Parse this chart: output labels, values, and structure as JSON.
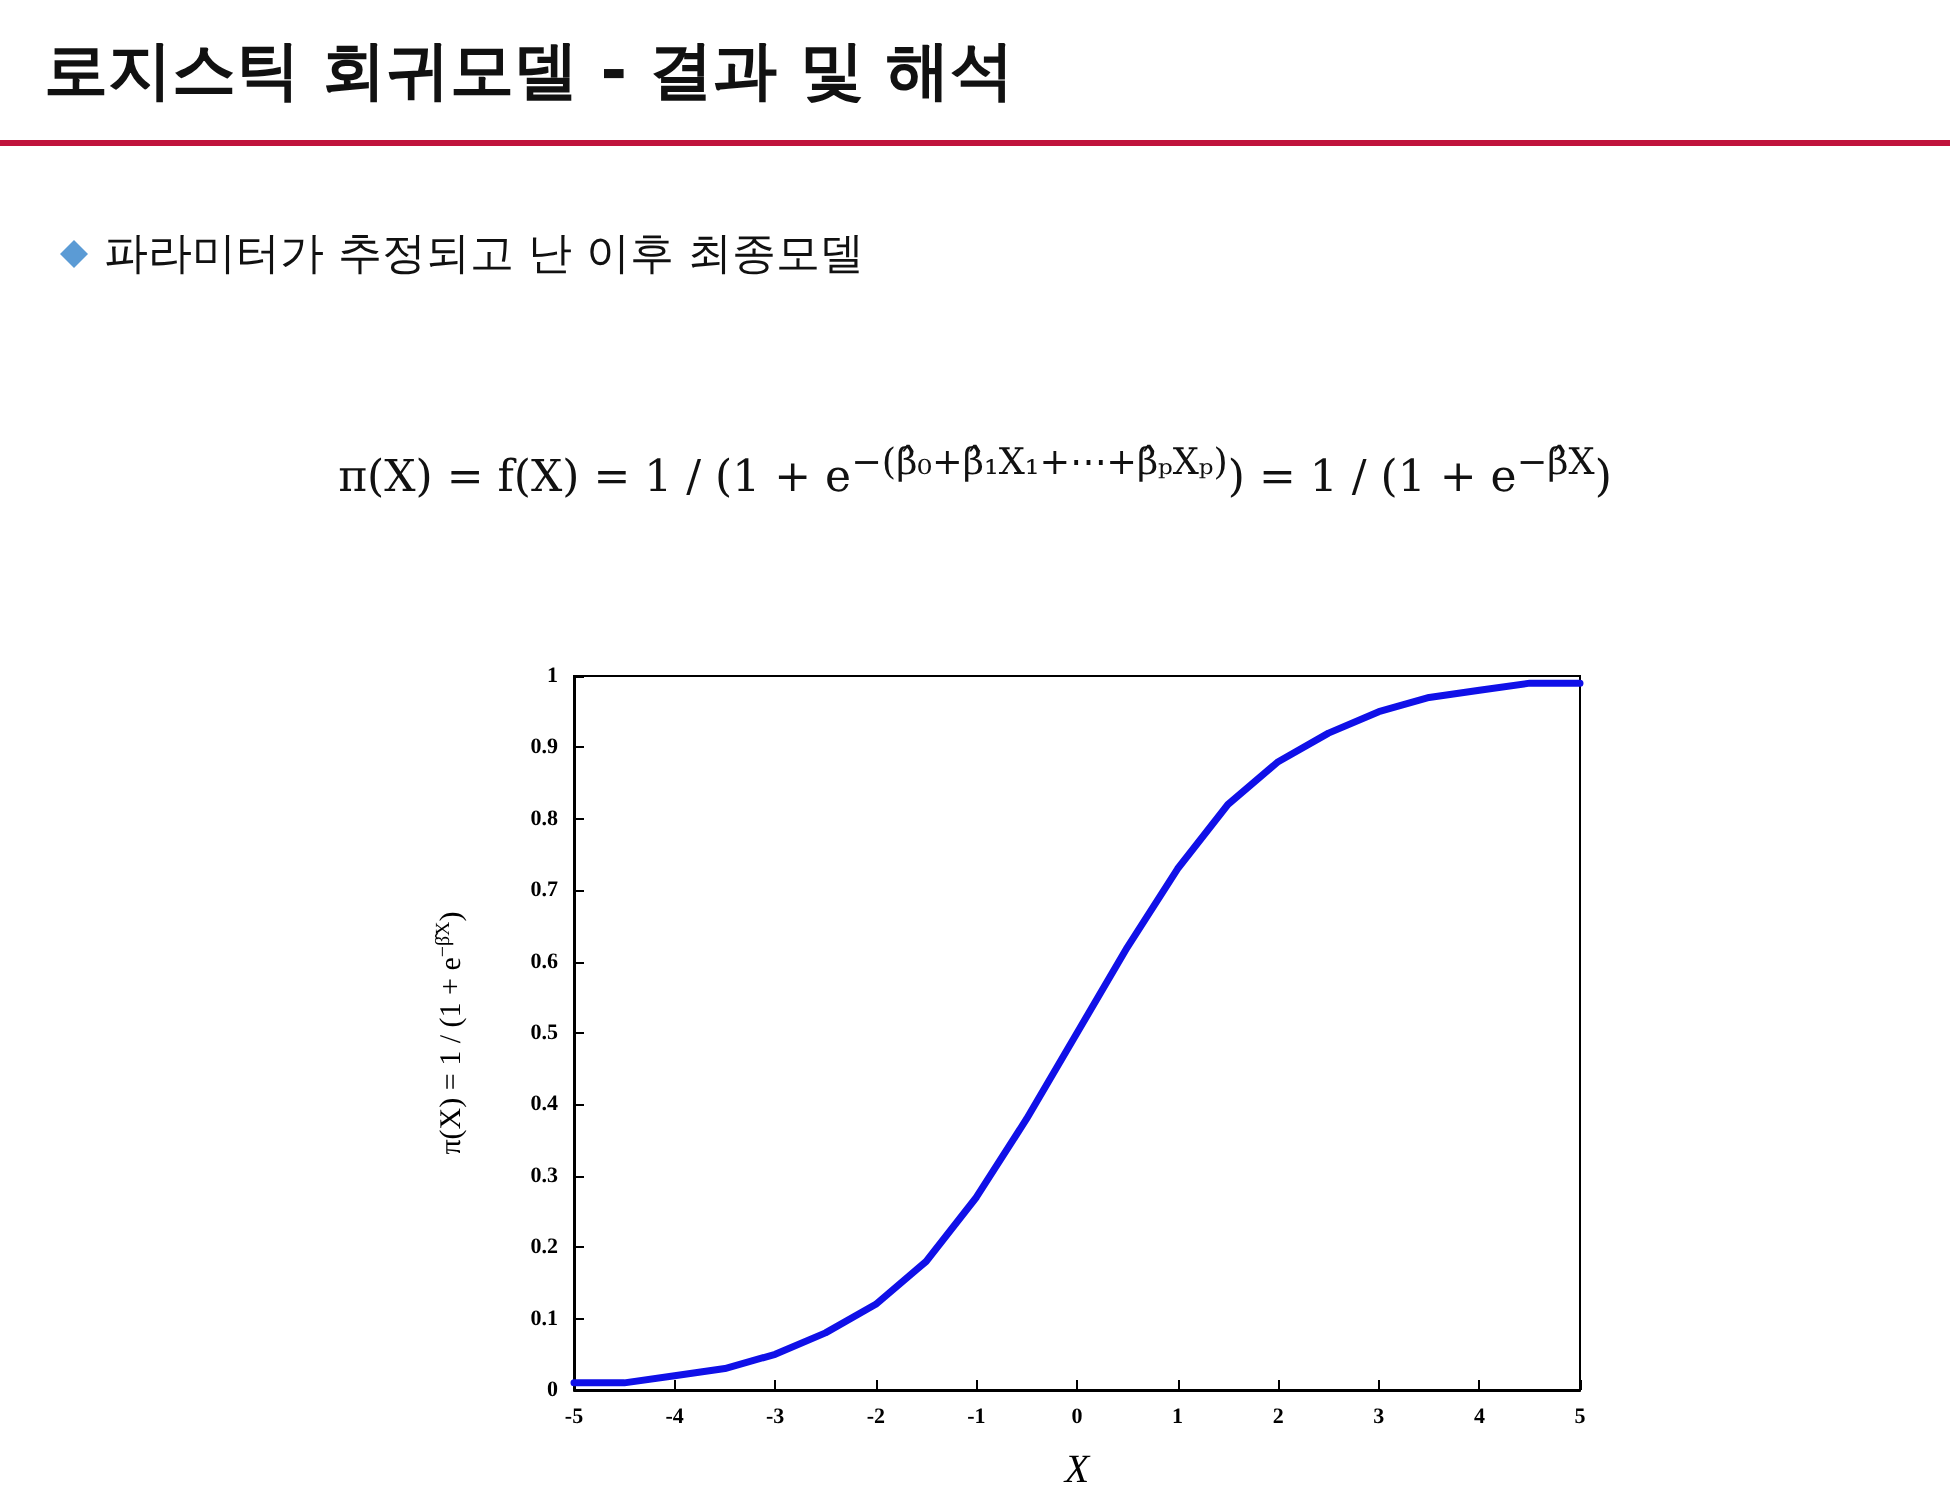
{
  "chart_data": {
    "type": "line",
    "title": "로지스틱 회귀모델 - 결과 및 해석",
    "subtitle": "파라미터가 추정되고 난 이후 최종모델",
    "annotations": [
      "π(X) = f(X) = 1 / (1 + e$^{−(β̂₀+β̂₁X₁+⋯+β̂ₚXₚ)}$) = 1 / (1 + e$^{−β̂X}$)"
    ],
    "xlabel": "X",
    "ylabel": "π(X) = 1 / (1 + e$^{−β̂X}$)",
    "x": [
      -5,
      -4.5,
      -4,
      -3.5,
      -3,
      -2.5,
      -2,
      -1.5,
      -1,
      -0.5,
      0,
      0.5,
      1,
      1.5,
      2,
      2.5,
      3,
      3.5,
      4,
      4.5,
      5
    ],
    "values": [
      0.01,
      0.01,
      0.02,
      0.03,
      0.05,
      0.08,
      0.12,
      0.18,
      0.27,
      0.38,
      0.5,
      0.62,
      0.73,
      0.82,
      0.88,
      0.92,
      0.95,
      0.97,
      0.98,
      0.99,
      0.99
    ],
    "color": "#1010e8",
    "xlim": [
      -5,
      5
    ],
    "ylim": [
      0,
      1
    ],
    "xticks": [
      -5,
      -4,
      -3,
      -2,
      -1,
      0,
      1,
      2,
      3,
      4,
      5
    ],
    "yticks": [
      0,
      0.1,
      0.2,
      0.3,
      0.4,
      0.5,
      0.6,
      0.7,
      0.8,
      0.9,
      1
    ],
    "grid": false,
    "marker": "none",
    "line_style": "solid"
  }
}
